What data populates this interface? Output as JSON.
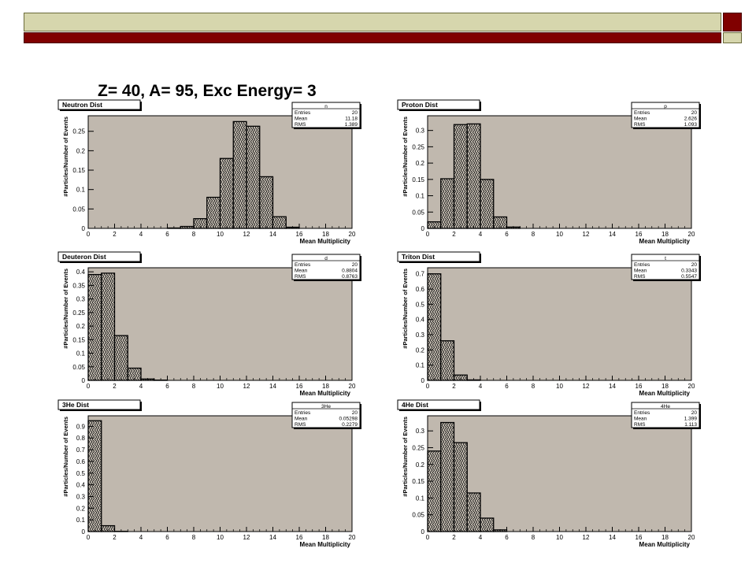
{
  "page": {
    "title": "Z= 40, A= 95, Exc Energy= 3"
  },
  "colors": {
    "frame_fill": "#c0b8ae",
    "bar_fill": "#c8c0b4",
    "accent_red": "#800000",
    "accent_olive": "#d6d6ad"
  },
  "chart_data": [
    {
      "type": "bar",
      "panel_title": "Neutron Dist",
      "stats": {
        "name": "n",
        "rows": [
          {
            "label": "Entries",
            "value": "20"
          },
          {
            "label": "Mean",
            "value": "11.18"
          },
          {
            "label": "RMS",
            "value": "1.389"
          }
        ]
      },
      "xlabel": "Mean Multiplicity",
      "ylabel": "#Particles/Number of Events",
      "xlim": [
        0,
        20
      ],
      "ylim": [
        0,
        0.29
      ],
      "xticks": [
        "0",
        "2",
        "4",
        "6",
        "8",
        "10",
        "12",
        "14",
        "16",
        "18",
        "20"
      ],
      "yticks": [
        {
          "v": 0,
          "t": "0"
        },
        {
          "v": 0.05,
          "t": "0.05"
        },
        {
          "v": 0.1,
          "t": "0.1"
        },
        {
          "v": 0.15,
          "t": "0.15"
        },
        {
          "v": 0.2,
          "t": "0.2"
        },
        {
          "v": 0.25,
          "t": "0.25"
        }
      ],
      "bin_width": 1,
      "bins": [
        {
          "x": 6,
          "y": 0.001
        },
        {
          "x": 7,
          "y": 0.005
        },
        {
          "x": 8,
          "y": 0.025
        },
        {
          "x": 9,
          "y": 0.08
        },
        {
          "x": 10,
          "y": 0.18
        },
        {
          "x": 11,
          "y": 0.275
        },
        {
          "x": 12,
          "y": 0.263
        },
        {
          "x": 13,
          "y": 0.133
        },
        {
          "x": 14,
          "y": 0.03
        },
        {
          "x": 15,
          "y": 0.003
        }
      ]
    },
    {
      "type": "bar",
      "panel_title": "Proton Dist",
      "stats": {
        "name": "p",
        "rows": [
          {
            "label": "Entries",
            "value": "20"
          },
          {
            "label": "Mean",
            "value": "2.626"
          },
          {
            "label": "RMS",
            "value": "1.093"
          }
        ]
      },
      "xlabel": "Mean Multiplicity",
      "ylabel": "#Particles/Number of Events",
      "xlim": [
        0,
        20
      ],
      "ylim": [
        0,
        0.345
      ],
      "xticks": [
        "0",
        "2",
        "4",
        "6",
        "8",
        "10",
        "12",
        "14",
        "16",
        "18",
        "20"
      ],
      "yticks": [
        {
          "v": 0,
          "t": "0"
        },
        {
          "v": 0.05,
          "t": "0.05"
        },
        {
          "v": 0.1,
          "t": "0.1"
        },
        {
          "v": 0.15,
          "t": "0.15"
        },
        {
          "v": 0.2,
          "t": "0.2"
        },
        {
          "v": 0.25,
          "t": "0.25"
        },
        {
          "v": 0.3,
          "t": "0.3"
        }
      ],
      "bin_width": 1,
      "bins": [
        {
          "x": 0,
          "y": 0.02
        },
        {
          "x": 1,
          "y": 0.152
        },
        {
          "x": 2,
          "y": 0.318
        },
        {
          "x": 3,
          "y": 0.32
        },
        {
          "x": 4,
          "y": 0.15
        },
        {
          "x": 5,
          "y": 0.035
        },
        {
          "x": 6,
          "y": 0.004
        }
      ]
    },
    {
      "type": "bar",
      "panel_title": "Deuteron Dist",
      "stats": {
        "name": "d",
        "rows": [
          {
            "label": "Entries",
            "value": "20"
          },
          {
            "label": "Mean",
            "value": "0.8804"
          },
          {
            "label": "RMS",
            "value": "0.8763"
          }
        ]
      },
      "xlabel": "Mean Multiplicity",
      "ylabel": "#Particles/Number of Events",
      "xlim": [
        0,
        20
      ],
      "ylim": [
        0,
        0.415
      ],
      "xticks": [
        "0",
        "2",
        "4",
        "6",
        "8",
        "10",
        "12",
        "14",
        "16",
        "18",
        "20"
      ],
      "yticks": [
        {
          "v": 0,
          "t": "0"
        },
        {
          "v": 0.05,
          "t": "0.05"
        },
        {
          "v": 0.1,
          "t": "0.1"
        },
        {
          "v": 0.15,
          "t": "0.15"
        },
        {
          "v": 0.2,
          "t": "0.2"
        },
        {
          "v": 0.25,
          "t": "0.25"
        },
        {
          "v": 0.3,
          "t": "0.3"
        },
        {
          "v": 0.35,
          "t": "0.35"
        },
        {
          "v": 0.4,
          "t": "0.4"
        }
      ],
      "bin_width": 1,
      "bins": [
        {
          "x": 0,
          "y": 0.39
        },
        {
          "x": 1,
          "y": 0.395
        },
        {
          "x": 2,
          "y": 0.165
        },
        {
          "x": 3,
          "y": 0.045
        },
        {
          "x": 4,
          "y": 0.005
        },
        {
          "x": 5,
          "y": 0.001
        }
      ]
    },
    {
      "type": "bar",
      "panel_title": "Triton Dist",
      "stats": {
        "name": "t",
        "rows": [
          {
            "label": "Entries",
            "value": "20"
          },
          {
            "label": "Mean",
            "value": "0.3343"
          },
          {
            "label": "RMS",
            "value": "0.5547"
          }
        ]
      },
      "xlabel": "Mean Multiplicity",
      "ylabel": "#Particles/Number of Events",
      "xlim": [
        0,
        20
      ],
      "ylim": [
        0,
        0.74
      ],
      "xticks": [
        "0",
        "2",
        "4",
        "6",
        "8",
        "10",
        "12",
        "14",
        "16",
        "18",
        "20"
      ],
      "yticks": [
        {
          "v": 0,
          "t": "0"
        },
        {
          "v": 0.1,
          "t": "0.1"
        },
        {
          "v": 0.2,
          "t": "0.2"
        },
        {
          "v": 0.3,
          "t": "0.3"
        },
        {
          "v": 0.4,
          "t": "0.4"
        },
        {
          "v": 0.5,
          "t": "0.5"
        },
        {
          "v": 0.6,
          "t": "0.6"
        },
        {
          "v": 0.7,
          "t": "0.7"
        }
      ],
      "bin_width": 1,
      "bins": [
        {
          "x": 0,
          "y": 0.7
        },
        {
          "x": 1,
          "y": 0.26
        },
        {
          "x": 2,
          "y": 0.035
        },
        {
          "x": 3,
          "y": 0.003
        }
      ]
    },
    {
      "type": "bar",
      "panel_title": "3He Dist",
      "stats": {
        "name": "3He",
        "rows": [
          {
            "label": "Entries",
            "value": "20"
          },
          {
            "label": "Mean",
            "value": "0.05298"
          },
          {
            "label": "RMS",
            "value": "0.2279"
          }
        ]
      },
      "xlabel": "Mean Multiplicity",
      "ylabel": "#Particles/Number of Events",
      "xlim": [
        0,
        20
      ],
      "ylim": [
        0,
        0.99
      ],
      "xticks": [
        "0",
        "2",
        "4",
        "6",
        "8",
        "10",
        "12",
        "14",
        "16",
        "18",
        "20"
      ],
      "yticks": [
        {
          "v": 0,
          "t": "0"
        },
        {
          "v": 0.1,
          "t": "0.1"
        },
        {
          "v": 0.2,
          "t": "0.2"
        },
        {
          "v": 0.3,
          "t": "0.3"
        },
        {
          "v": 0.4,
          "t": "0.4"
        },
        {
          "v": 0.5,
          "t": "0.5"
        },
        {
          "v": 0.6,
          "t": "0.6"
        },
        {
          "v": 0.7,
          "t": "0.7"
        },
        {
          "v": 0.8,
          "t": "0.8"
        },
        {
          "v": 0.9,
          "t": "0.9"
        }
      ],
      "bin_width": 1,
      "bins": [
        {
          "x": 0,
          "y": 0.948
        },
        {
          "x": 1,
          "y": 0.05
        },
        {
          "x": 2,
          "y": 0.002
        }
      ]
    },
    {
      "type": "bar",
      "panel_title": "4He Dist",
      "stats": {
        "name": "4He",
        "rows": [
          {
            "label": "Entries",
            "value": "20"
          },
          {
            "label": "Mean",
            "value": "1.399"
          },
          {
            "label": "RMS",
            "value": "1.113"
          }
        ]
      },
      "xlabel": "Mean Multiplicity",
      "ylabel": "#Particles/Number of Events",
      "xlim": [
        0,
        20
      ],
      "ylim": [
        0,
        0.345
      ],
      "xticks": [
        "0",
        "2",
        "4",
        "6",
        "8",
        "10",
        "12",
        "14",
        "16",
        "18",
        "20"
      ],
      "yticks": [
        {
          "v": 0,
          "t": "0"
        },
        {
          "v": 0.05,
          "t": "0.05"
        },
        {
          "v": 0.1,
          "t": "0.1"
        },
        {
          "v": 0.15,
          "t": "0.15"
        },
        {
          "v": 0.2,
          "t": "0.2"
        },
        {
          "v": 0.25,
          "t": "0.25"
        },
        {
          "v": 0.3,
          "t": "0.3"
        }
      ],
      "bin_width": 1,
      "bins": [
        {
          "x": 0,
          "y": 0.24
        },
        {
          "x": 1,
          "y": 0.325
        },
        {
          "x": 2,
          "y": 0.265
        },
        {
          "x": 3,
          "y": 0.115
        },
        {
          "x": 4,
          "y": 0.04
        },
        {
          "x": 5,
          "y": 0.005
        }
      ]
    }
  ]
}
